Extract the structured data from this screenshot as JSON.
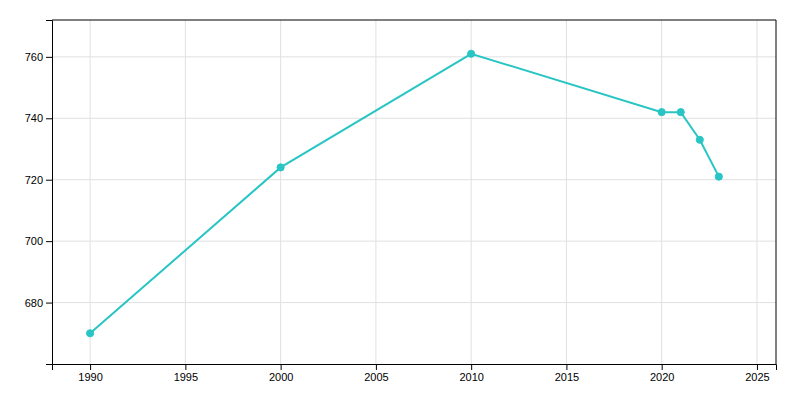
{
  "chart_data": {
    "type": "line",
    "x": [
      1990,
      2000,
      2010,
      2020,
      2021,
      2022,
      2023
    ],
    "values": [
      670,
      724,
      761,
      742,
      742,
      733,
      721
    ],
    "color": "#29c5c5",
    "marker": "circle",
    "xlim": [
      1988,
      2026
    ],
    "ylim": [
      660,
      772
    ],
    "xticks": [
      1990,
      1995,
      2000,
      2005,
      2010,
      2015,
      2020,
      2025
    ],
    "yticks": [
      680,
      700,
      720,
      740,
      760
    ],
    "grid": true
  }
}
